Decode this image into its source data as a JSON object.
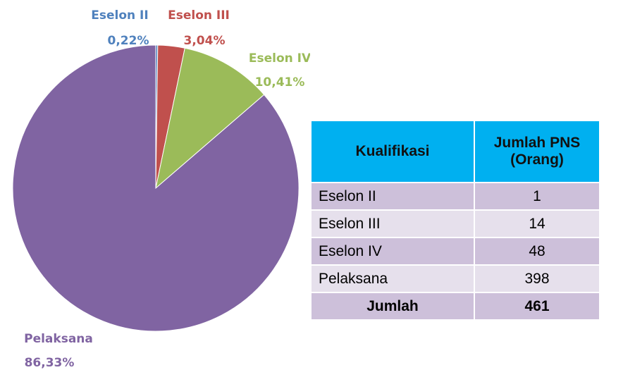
{
  "chart_data": {
    "type": "pie",
    "categories": [
      "Eselon II",
      "Eselon III",
      "Eselon IV",
      "Pelaksana"
    ],
    "values": [
      0.22,
      3.04,
      10.41,
      86.33
    ],
    "value_labels": [
      "0,22%",
      "3,04%",
      "10,41%",
      "86,33%"
    ],
    "colors": [
      "#4f81bd",
      "#c0504d",
      "#9bbb59",
      "#8064a2"
    ]
  },
  "table": {
    "header": [
      "Kualifikasi",
      "Jumlah PNS (Orang)"
    ],
    "rows": [
      [
        "Eselon II",
        1
      ],
      [
        "Eselon III",
        14
      ],
      [
        "Eselon IV",
        48
      ],
      [
        "Pelaksana",
        398
      ]
    ],
    "total": [
      "Jumlah",
      461
    ]
  }
}
